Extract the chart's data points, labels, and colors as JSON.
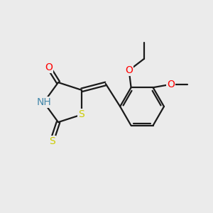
{
  "background_color": "#ebebeb",
  "bond_color": "#1a1a1a",
  "bond_width": 1.6,
  "dbo": 0.055,
  "atom_colors": {
    "O": "#ff0000",
    "N": "#4488aa",
    "S": "#cccc00",
    "H": "#4488aa",
    "C": "#1a1a1a"
  },
  "font_size": 10,
  "fig_size": [
    3.0,
    3.0
  ],
  "dpi": 100
}
